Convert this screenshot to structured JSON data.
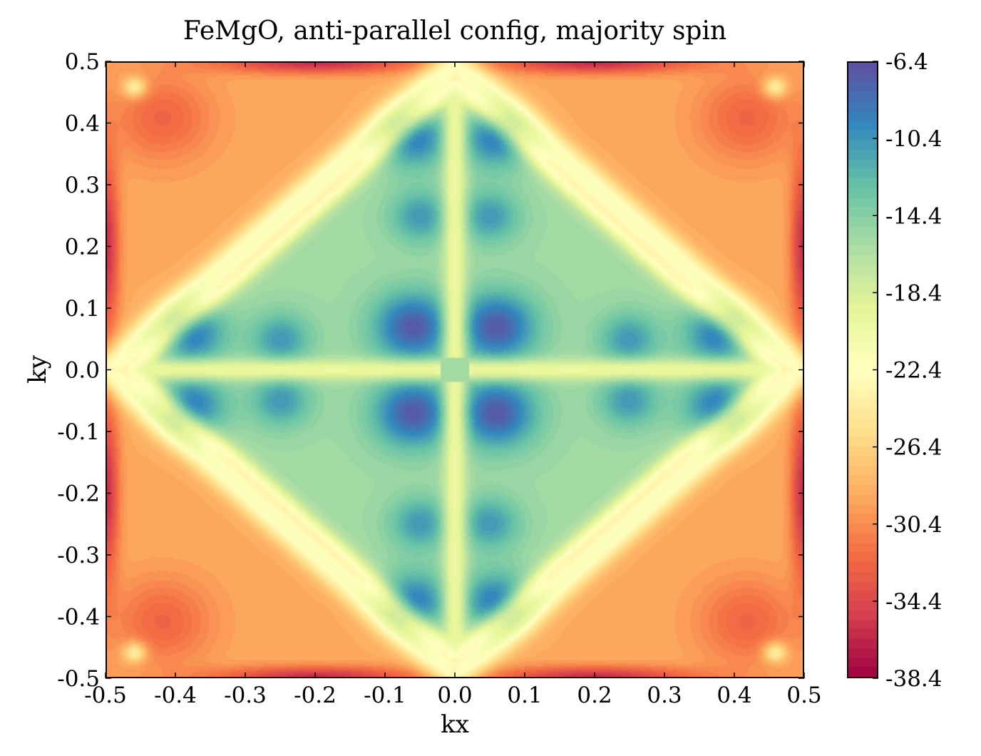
{
  "chart_data": {
    "type": "heatmap",
    "title": "FeMgO, anti-parallel config, majority spin",
    "xlabel": "kx",
    "ylabel": "ky",
    "xlim": [
      -0.5,
      0.5
    ],
    "ylim": [
      -0.5,
      0.5
    ],
    "x_ticks": [
      "-0.5",
      "-0.4",
      "-0.3",
      "-0.2",
      "-0.1",
      "0.0",
      "0.1",
      "0.2",
      "0.3",
      "0.4",
      "0.5"
    ],
    "y_ticks": [
      "0.5",
      "0.4",
      "0.3",
      "0.2",
      "0.1",
      "0.0",
      "-0.1",
      "-0.2",
      "-0.3",
      "-0.4",
      "-0.5"
    ],
    "colorbar": {
      "min": -38.4,
      "max": -6.4,
      "colormap": "Spectral",
      "ticks": [
        "-6.4",
        "-10.4",
        "-14.4",
        "-18.4",
        "-22.4",
        "-26.4",
        "-30.4",
        "-34.4",
        "-38.4"
      ]
    },
    "description_values": {
      "center_kx0_ky0": -16,
      "blue_pockets_near_kx_0.06_ky_0.06": -8,
      "corners": -30,
      "edges_near_kx_0.5": -36
    }
  }
}
